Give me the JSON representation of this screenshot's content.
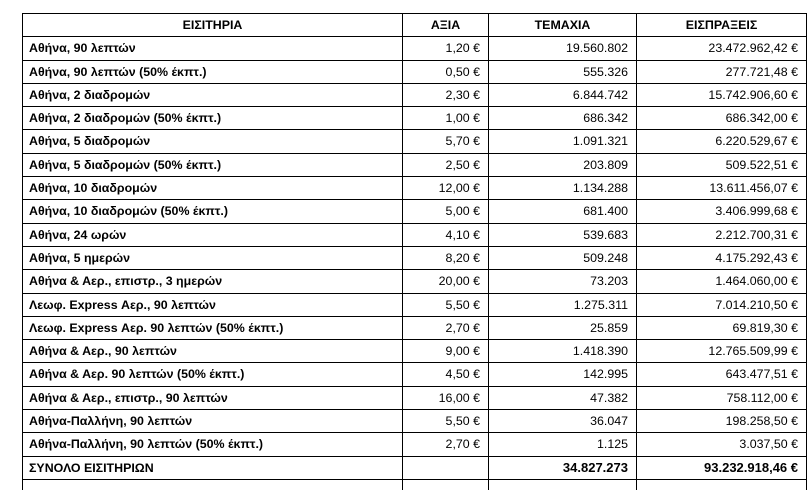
{
  "headers": {
    "ticket": "ΕΙΣΙΤΗΡΙΑ",
    "value": "ΑΞΙΑ",
    "quantity": "ΤΕΜΑΧΙΑ",
    "revenue": "ΕΙΣΠΡΑΞΕΙΣ"
  },
  "rows": [
    {
      "name": "Αθήνα, 90 λεπτών",
      "price": "1,20 €",
      "qty": "19.560.802",
      "rev": "23.472.962,42 €"
    },
    {
      "name": "Αθήνα, 90 λεπτών (50% έκπτ.)",
      "price": "0,50 €",
      "qty": "555.326",
      "rev": "277.721,48 €"
    },
    {
      "name": "Αθήνα, 2 διαδρομών",
      "price": "2,30 €",
      "qty": "6.844.742",
      "rev": "15.742.906,60 €"
    },
    {
      "name": "Αθήνα, 2 διαδρομών (50% έκπτ.)",
      "price": "1,00 €",
      "qty": "686.342",
      "rev": "686.342,00 €"
    },
    {
      "name": "Αθήνα, 5 διαδρομών",
      "price": "5,70 €",
      "qty": "1.091.321",
      "rev": "6.220.529,67 €"
    },
    {
      "name": "Αθήνα, 5 διαδρομών (50% έκπτ.)",
      "price": "2,50 €",
      "qty": "203.809",
      "rev": "509.522,51 €"
    },
    {
      "name": "Αθήνα, 10 διαδρομών",
      "price": "12,00 €",
      "qty": "1.134.288",
      "rev": "13.611.456,07 €"
    },
    {
      "name": "Αθήνα, 10 διαδρομών (50% έκπτ.)",
      "price": "5,00 €",
      "qty": "681.400",
      "rev": "3.406.999,68 €"
    },
    {
      "name": "Αθήνα, 24 ωρών",
      "price": "4,10 €",
      "qty": "539.683",
      "rev": "2.212.700,31 €"
    },
    {
      "name": "Αθήνα, 5 ημερών",
      "price": "8,20 €",
      "qty": "509.248",
      "rev": "4.175.292,43 €"
    },
    {
      "name": "Αθήνα & Αερ., επιστρ., 3 ημερών",
      "price": "20,00 €",
      "qty": "73.203",
      "rev": "1.464.060,00 €"
    },
    {
      "name": "Λεωφ. Express Αερ., 90 λεπτών",
      "price": "5,50 €",
      "qty": "1.275.311",
      "rev": "7.014.210,50 €"
    },
    {
      "name": "Λεωφ. Express Αερ. 90 λεπτών (50% έκπτ.)",
      "price": "2,70 €",
      "qty": "25.859",
      "rev": "69.819,30 €"
    },
    {
      "name": "Αθήνα & Αερ., 90 λεπτών",
      "price": "9,00 €",
      "qty": "1.418.390",
      "rev": "12.765.509,99 €"
    },
    {
      "name": "Αθήνα & Αερ. 90 λεπτών (50% έκπτ.)",
      "price": "4,50 €",
      "qty": "142.995",
      "rev": "643.477,51 €"
    },
    {
      "name": "Αθήνα & Αερ., επιστρ., 90 λεπτών",
      "price": "16,00 €",
      "qty": "47.382",
      "rev": "758.112,00 €"
    },
    {
      "name": "Αθήνα-Παλλήνη, 90 λεπτών",
      "price": "5,50 €",
      "qty": "36.047",
      "rev": "198.258,50 €"
    },
    {
      "name": "Αθήνα-Παλλήνη, 90 λεπτών (50% έκπτ.)",
      "price": "2,70 €",
      "qty": "1.125",
      "rev": "3.037,50 €"
    }
  ],
  "total": {
    "label": "ΣΥΝΟΛΟ ΕΙΣΙΤΗΡΙΩΝ",
    "price": "",
    "qty": "34.827.273",
    "rev": "93.232.918,46 €"
  }
}
